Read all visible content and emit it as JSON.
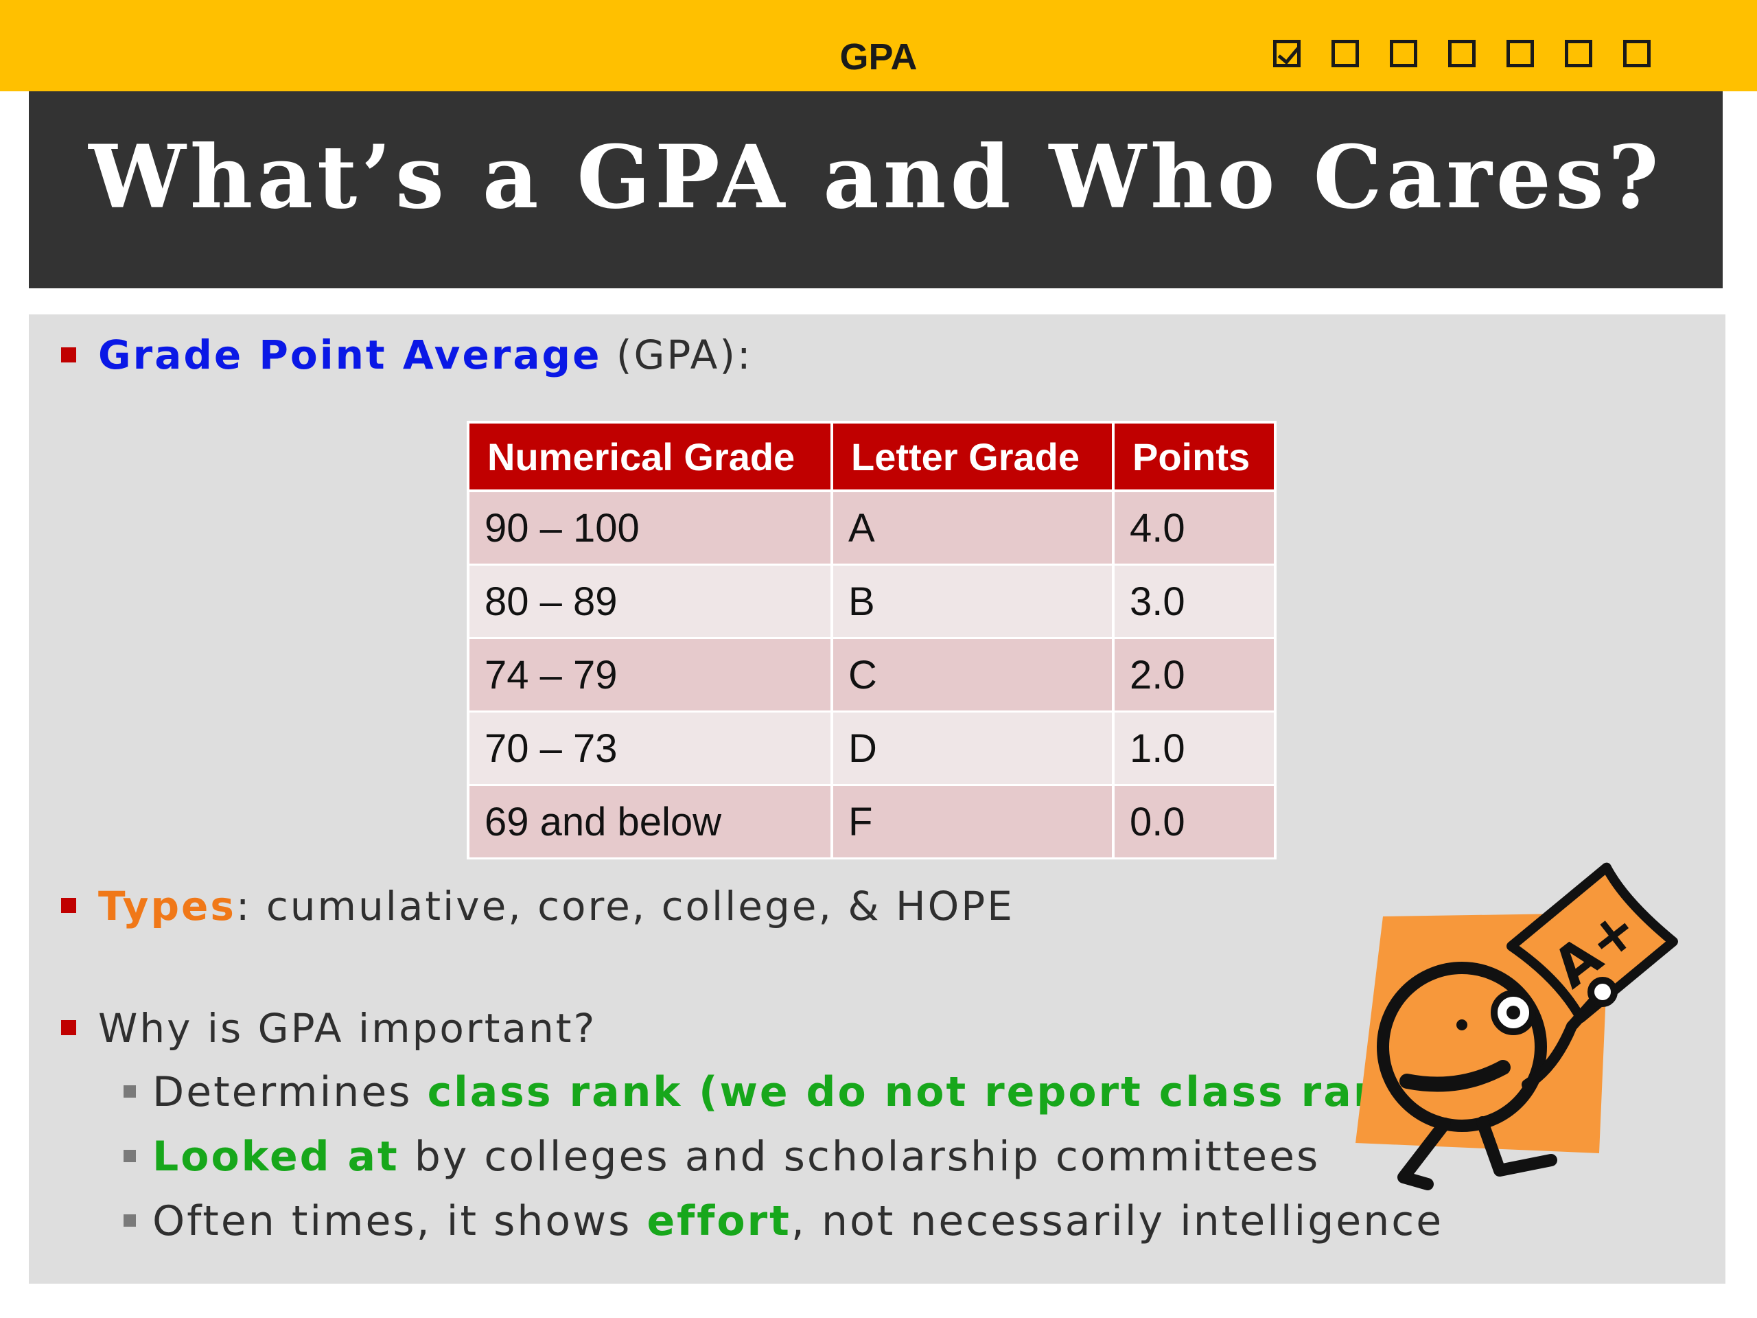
{
  "header": {
    "section_label": "GPA",
    "progress": {
      "total": 7,
      "checked_index": 0
    }
  },
  "slide": {
    "title": "What’s a GPA and Who Cares?"
  },
  "bullets": {
    "b1": {
      "highlight": "Grade Point Average",
      "rest": " (GPA):"
    },
    "b2": {
      "highlight": "Types",
      "rest": ": cumulative, core, college, & HOPE"
    },
    "b3": {
      "text": "Why is GPA important?"
    },
    "sub1": {
      "pre": "Determines ",
      "highlight": "class rank (we do not report class rank)"
    },
    "sub2": {
      "highlight": "Looked at",
      "rest": " by colleges and scholarship committees"
    },
    "sub3": {
      "pre": "Often times, it shows ",
      "highlight": "effort",
      "rest": ", not necessarily intelligence"
    }
  },
  "table": {
    "headers": [
      "Numerical Grade",
      "Letter Grade",
      "Points"
    ],
    "rows": [
      [
        "90 – 100",
        "A",
        "4.0"
      ],
      [
        "80 – 89",
        "B",
        "3.0"
      ],
      [
        "74 – 79",
        "C",
        "2.0"
      ],
      [
        "70 – 73",
        "D",
        "1.0"
      ],
      [
        "69 and below",
        "F",
        "0.0"
      ]
    ]
  },
  "clipart": {
    "icon": "student-holding-a-plus-paper-icon",
    "paper_text": "A+"
  },
  "colors": {
    "topbar": "#ffc000",
    "titlebar": "#333333",
    "content_bg": "#dedede",
    "bullet": "#c00000",
    "table_header": "#c00000",
    "blue_highlight": "#0a18e6",
    "orange_highlight": "#f07818",
    "green_highlight": "#17a71b"
  }
}
